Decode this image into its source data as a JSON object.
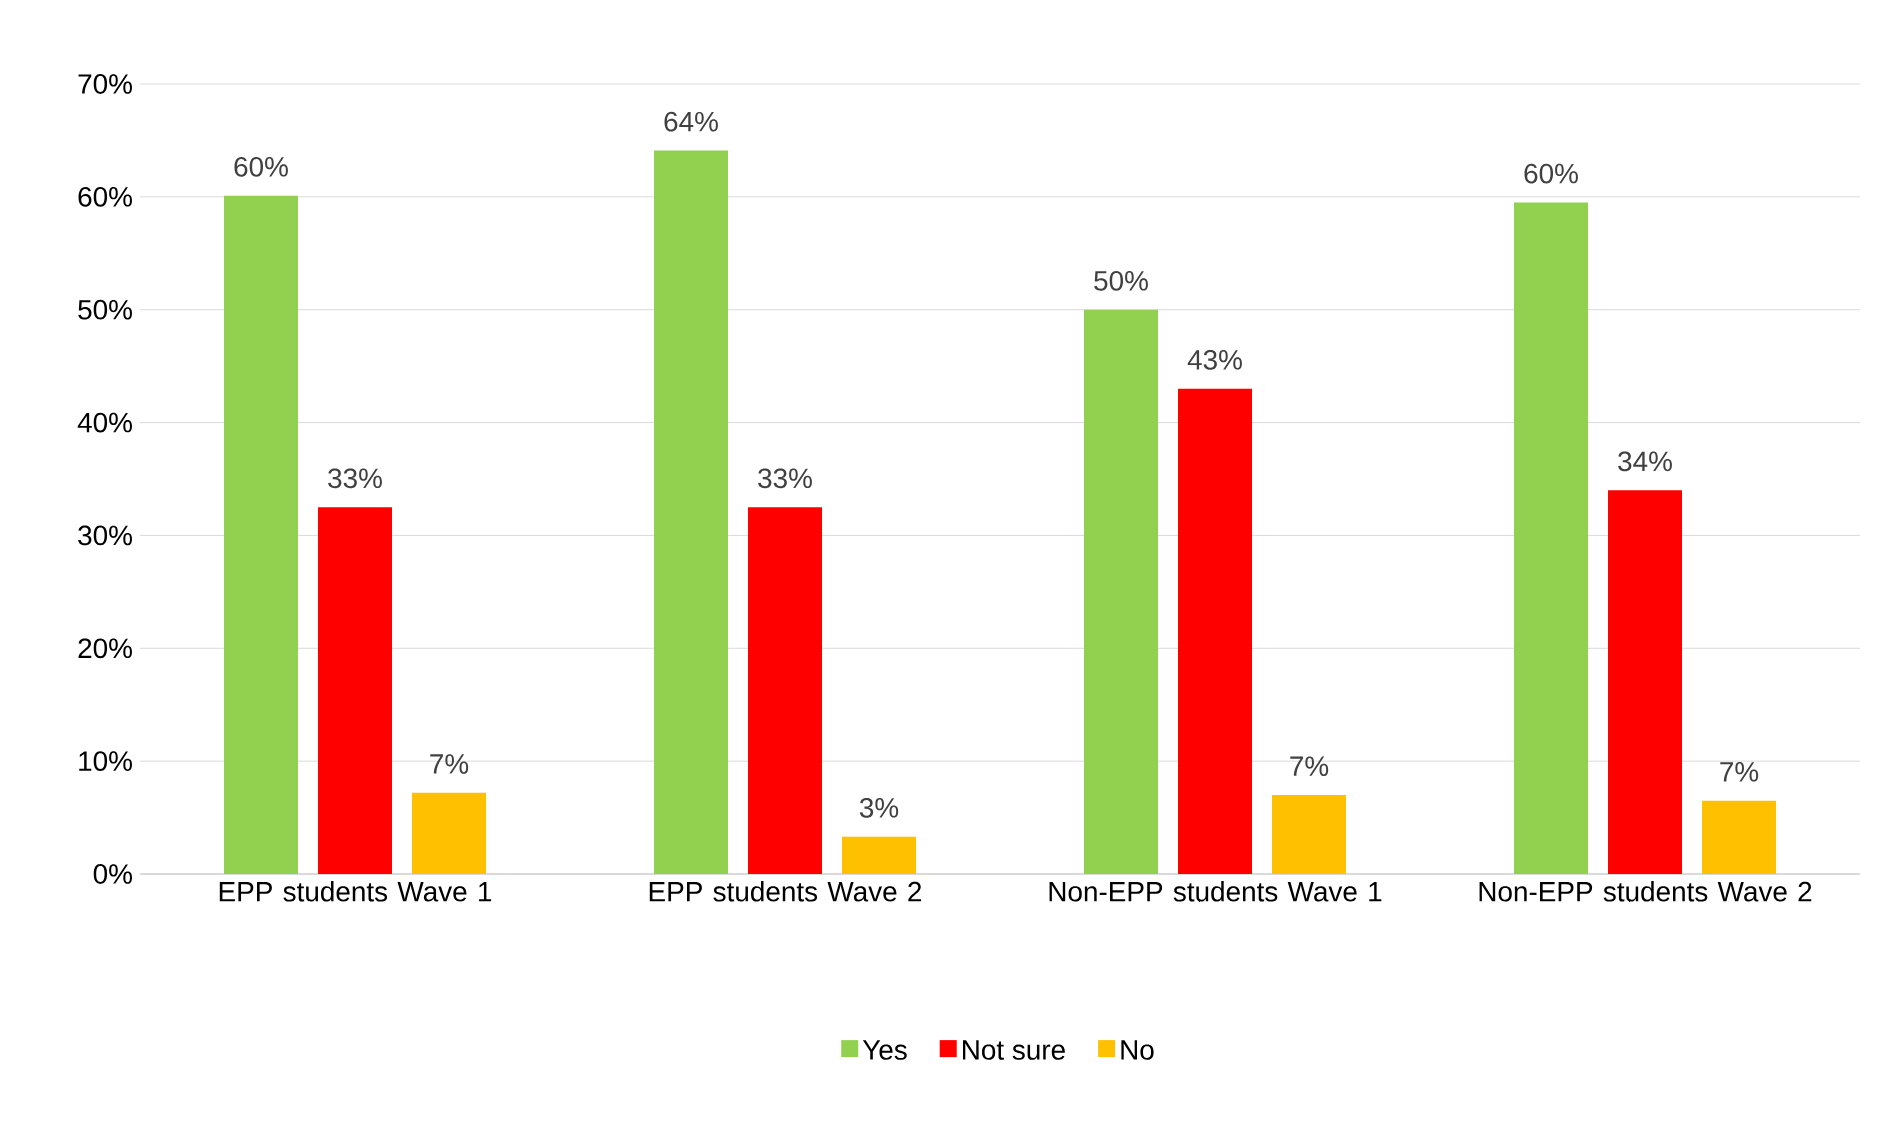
{
  "chart_data": {
    "type": "bar",
    "categories": [
      "EPP students Wave 1",
      "EPP students Wave 2",
      "Non-EPP students Wave 1",
      "Non-EPP students Wave 2"
    ],
    "series": [
      {
        "name": "Yes",
        "color": "#92d050",
        "values": [
          60.1,
          64.1,
          50.0,
          59.5
        ],
        "value_labels": [
          "60%",
          "64%",
          "50%",
          "60%"
        ]
      },
      {
        "name": "Not sure",
        "color": "#ff0000",
        "values": [
          32.5,
          32.5,
          43.0,
          34.0
        ],
        "value_labels": [
          "33%",
          "33%",
          "43%",
          "34%"
        ]
      },
      {
        "name": "No",
        "color": "#ffc000",
        "values": [
          7.2,
          3.3,
          7.0,
          6.5
        ],
        "value_labels": [
          "7%",
          "3%",
          "7%",
          "7%"
        ]
      }
    ],
    "ylim": [
      0,
      70
    ],
    "yticks": [
      {
        "value": 0,
        "label": "0%"
      },
      {
        "value": 10,
        "label": "10%"
      },
      {
        "value": 20,
        "label": "20%"
      },
      {
        "value": 30,
        "label": "30%"
      },
      {
        "value": 40,
        "label": "40%"
      },
      {
        "value": 50,
        "label": "50%"
      },
      {
        "value": 60,
        "label": "60%"
      },
      {
        "value": 70,
        "label": "70%"
      }
    ],
    "grid": "y",
    "legend": "bottom"
  }
}
